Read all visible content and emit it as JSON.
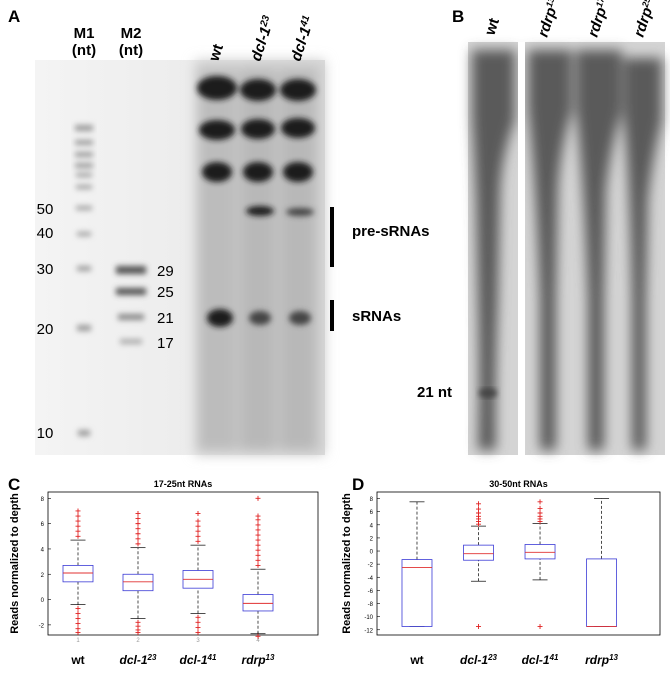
{
  "panel_a": {
    "letter": "A",
    "lanes": [
      {
        "name": "M1",
        "unit": "(nt)"
      },
      {
        "name": "M2",
        "unit": "(nt)"
      }
    ],
    "samples": [
      {
        "name": "wt"
      },
      {
        "name": "dcl-1",
        "sup": "23"
      },
      {
        "name": "dcl-1",
        "sup": "41"
      }
    ],
    "m1_sizes": [
      50,
      40,
      30,
      20,
      10
    ],
    "m2_sizes": [
      29,
      25,
      21,
      17
    ],
    "brackets": [
      "pre-sRNAs",
      "sRNAs"
    ]
  },
  "panel_b": {
    "letter": "B",
    "samples": [
      {
        "name": "wt"
      },
      {
        "name": "rdrp",
        "sup": "13"
      },
      {
        "name": "rdrp",
        "sup": "17"
      },
      {
        "name": "rdrp",
        "sup": "25"
      }
    ],
    "size_label": "21 nt"
  },
  "chart_data": [
    {
      "type": "box",
      "panel": "C",
      "title": "17-25nt RNAs",
      "y_label": "Reads normalized to depth",
      "categories": [
        {
          "name": "wt"
        },
        {
          "name": "dcl-1",
          "sup": "23"
        },
        {
          "name": "dcl-1",
          "sup": "41"
        },
        {
          "name": "rdrp",
          "sup": "13"
        }
      ],
      "x": [
        1,
        2,
        3,
        4
      ],
      "xticks": [
        1,
        2,
        3,
        4
      ],
      "xlim": [
        0.5,
        5
      ],
      "ylim": [
        -2.8,
        8.5
      ],
      "yticks": [
        8,
        6,
        4,
        2,
        0,
        -2
      ],
      "box_color": "#3b3bd6",
      "median_color": "#e03030",
      "flier_color": "#e02020",
      "boxes": [
        {
          "whislo": -0.4,
          "q1": 1.4,
          "med": 2.1,
          "q3": 2.7,
          "whishi": 4.7,
          "fliers": [
            5.0,
            5.4,
            5.8,
            6.2,
            6.6,
            7.0,
            -0.7,
            -1.1,
            -1.5,
            -1.9,
            -2.3,
            -2.6
          ]
        },
        {
          "whislo": -1.5,
          "q1": 0.7,
          "med": 1.4,
          "q3": 2.0,
          "whishi": 4.1,
          "fliers": [
            4.4,
            4.8,
            5.2,
            5.6,
            6.0,
            6.4,
            6.8,
            -1.8,
            -2.1,
            -2.4,
            -2.6
          ]
        },
        {
          "whislo": -1.1,
          "q1": 0.9,
          "med": 1.6,
          "q3": 2.3,
          "whishi": 4.3,
          "fliers": [
            4.6,
            5.0,
            5.4,
            5.8,
            6.2,
            6.8,
            -1.4,
            -1.8,
            -2.2,
            -2.6
          ]
        },
        {
          "whislo": -2.7,
          "q1": -0.9,
          "med": -0.3,
          "q3": 0.4,
          "whishi": 2.4,
          "fliers": [
            2.7,
            3.1,
            3.5,
            3.9,
            4.3,
            4.7,
            5.1,
            5.5,
            5.9,
            6.3,
            6.6,
            8.0,
            -2.9
          ]
        }
      ]
    },
    {
      "type": "box",
      "panel": "D",
      "title": "30-50nt RNAs",
      "y_label": "Reads normalized to depth",
      "categories": [
        {
          "name": "wt"
        },
        {
          "name": "dcl-1",
          "sup": "23"
        },
        {
          "name": "dcl-1",
          "sup": "41"
        },
        {
          "name": "rdrp",
          "sup": "13"
        }
      ],
      "x": [
        1,
        2,
        3,
        4
      ],
      "xlim": [
        0.35,
        4.95
      ],
      "ylim": [
        -12.8,
        9
      ],
      "yticks": [
        8,
        6,
        4,
        2,
        0,
        -2,
        -4,
        -6,
        -8,
        -10,
        -12
      ],
      "box_color": "#3b3bd6",
      "median_color": "#e03030",
      "flier_color": "#e02020",
      "boxes": [
        {
          "whislo": -11.5,
          "q1": -11.5,
          "med": -2.5,
          "q3": -1.3,
          "whishi": 7.5,
          "fliers": []
        },
        {
          "whislo": -4.6,
          "q1": -1.4,
          "med": -0.4,
          "q3": 0.9,
          "whishi": 3.8,
          "fliers": [
            4.1,
            4.5,
            4.9,
            5.3,
            5.8,
            6.4,
            7.2,
            -11.5
          ]
        },
        {
          "whislo": -4.4,
          "q1": -1.2,
          "med": -0.2,
          "q3": 1.0,
          "whishi": 4.2,
          "fliers": [
            4.5,
            4.9,
            5.3,
            5.8,
            6.5,
            7.5,
            -11.5
          ]
        },
        {
          "whislo": -11.5,
          "q1": -11.5,
          "med": -11.5,
          "q3": -1.2,
          "whishi": 8.0,
          "fliers": []
        }
      ]
    }
  ]
}
